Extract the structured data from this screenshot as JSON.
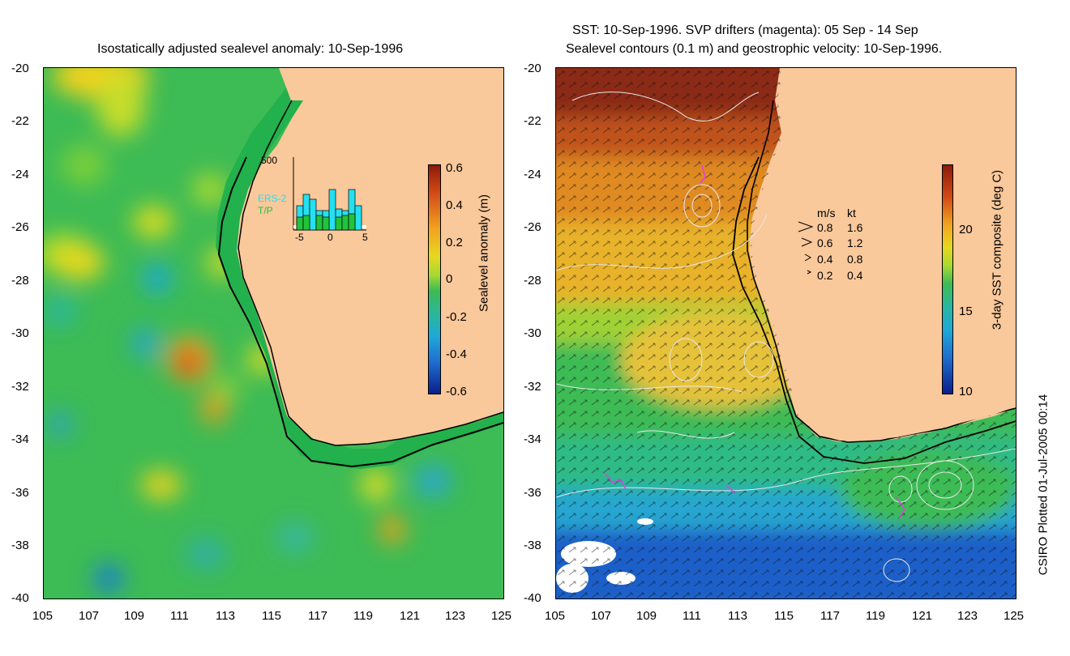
{
  "left_panel": {
    "title": "Isostatically adjusted sealevel anomaly: 10-Sep-1996",
    "y_ticks": [
      "-20",
      "-22",
      "-24",
      "-26",
      "-28",
      "-30",
      "-32",
      "-34",
      "-36",
      "-38",
      "-40"
    ],
    "x_ticks": [
      "105",
      "107",
      "109",
      "111",
      "113",
      "115",
      "117",
      "119",
      "121",
      "123",
      "125"
    ],
    "colorbar": {
      "label": "Sealevel anomaly (m)",
      "ticks": [
        "0.6",
        "0.4",
        "0.2",
        "0",
        "-0.2",
        "-0.4",
        "-0.6"
      ]
    },
    "inset": {
      "ymax_label": "500",
      "series_labels": [
        "ERS-2",
        "T/P"
      ],
      "x_ticks": [
        "-5",
        "0",
        "5"
      ]
    }
  },
  "right_panel": {
    "title_line1": "SST: 10-Sep-1996. SVP drifters (magenta): 05 Sep - 14 Sep",
    "title_line2": "Sealevel contours (0.1 m) and geostrophic velocity: 10-Sep-1996.",
    "y_ticks": [
      "-20",
      "-22",
      "-24",
      "-26",
      "-28",
      "-30",
      "-32",
      "-34",
      "-36",
      "-38",
      "-40"
    ],
    "x_ticks": [
      "105",
      "107",
      "109",
      "111",
      "113",
      "115",
      "117",
      "119",
      "121",
      "123",
      "125"
    ],
    "colorbar": {
      "label": "3-day SST composite (deg C)",
      "ticks": [
        "20",
        "15",
        "10"
      ]
    },
    "velocity_legend": {
      "header_ms": "m/s",
      "header_kt": "kt",
      "rows": [
        {
          "ms": "0.8",
          "kt": "1.6"
        },
        {
          "ms": "0.6",
          "kt": "1.2"
        },
        {
          "ms": "0.4",
          "kt": "0.8"
        },
        {
          "ms": "0.2",
          "kt": "0.4"
        }
      ]
    }
  },
  "credit": "CSIRO Plotted 01-Jul-2005 00:14",
  "colors": {
    "land": "#f9c89b",
    "ocean_mid": "#3dbb55",
    "drifter": "#e040e0"
  }
}
